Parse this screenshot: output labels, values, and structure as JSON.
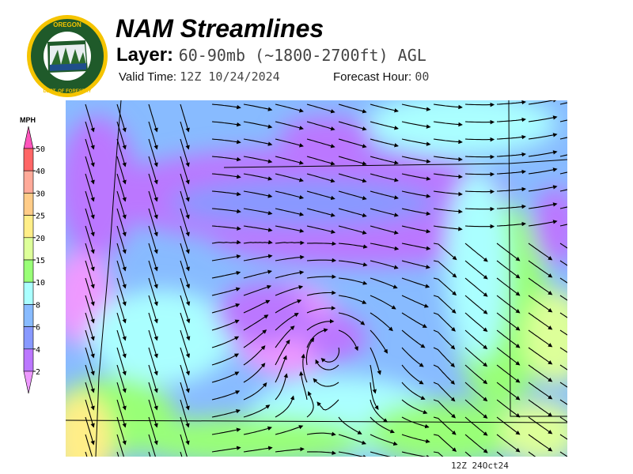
{
  "header": {
    "title": "NAM Streamlines",
    "layer_label": "Layer:",
    "layer_value": "60-90mb (~1800-2700ft) AGL",
    "valid_time_label": "Valid Time:",
    "valid_time_value": "12Z 10/24/2024",
    "forecast_hour_label": "Forecast Hour:",
    "forecast_hour_value": "00"
  },
  "logo": {
    "text_top": "OREGON",
    "text_bottom": "DEPARTMENT OF FORESTRY"
  },
  "legend": {
    "units": "MPH",
    "ticks": [
      "50",
      "40",
      "30",
      "25",
      "20",
      "15",
      "10",
      "8",
      "6",
      "4",
      "2"
    ],
    "colors": [
      "#ff55bb",
      "#ff6666",
      "#ffaa99",
      "#ffcc88",
      "#ffee88",
      "#ddff99",
      "#99ff77",
      "#aaffff",
      "#88bbff",
      "#8899ff",
      "#bb77ff",
      "#ee99ff"
    ]
  },
  "map": {
    "footer_stamp": "12Z 24Oct24"
  }
}
